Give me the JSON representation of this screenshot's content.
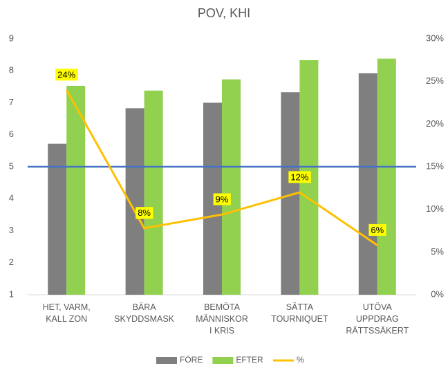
{
  "chart_data": {
    "type": "bar",
    "title": "POV, KHI",
    "categories": [
      "HET, VARM,\nKALL ZON",
      "BÄRA\nSKYDDSMASK",
      "BEMÖTA\nMÄNNISKOR\nI KRIS",
      "SÄTTA\nTOURNIQUET",
      "UTÖVA\nUPPDRAG\nRÄTTSSÄKERT"
    ],
    "series": [
      {
        "name": "FÖRE",
        "color": "#7f7f7f",
        "type": "bar",
        "values": [
          5.72,
          6.83,
          7.0,
          7.33,
          7.92
        ]
      },
      {
        "name": "EFTER",
        "color": "#92d050",
        "type": "bar",
        "values": [
          7.53,
          7.38,
          7.73,
          8.33,
          8.38
        ]
      },
      {
        "name": "%",
        "color": "#ffc000",
        "type": "line",
        "axis": "y2",
        "values": [
          24,
          7.8,
          9.4,
          12,
          5.8
        ],
        "value_labels": [
          "24%",
          "8%",
          "9%",
          "12%",
          "6%"
        ]
      }
    ],
    "reference_line": {
      "value": 5,
      "color": "#4472c4"
    },
    "ylim": [
      1,
      9
    ],
    "yticks": [
      1,
      2,
      3,
      4,
      5,
      6,
      7,
      8,
      9
    ],
    "y2lim": [
      0,
      30
    ],
    "y2ticks": [
      {
        "value": 0,
        "label": "0%"
      },
      {
        "value": 5,
        "label": "5%"
      },
      {
        "value": 10,
        "label": "10%"
      },
      {
        "value": 15,
        "label": "15%"
      },
      {
        "value": 20,
        "label": "20%"
      },
      {
        "value": 25,
        "label": "25%"
      },
      {
        "value": 30,
        "label": "30%"
      }
    ],
    "legend": "bottom"
  }
}
